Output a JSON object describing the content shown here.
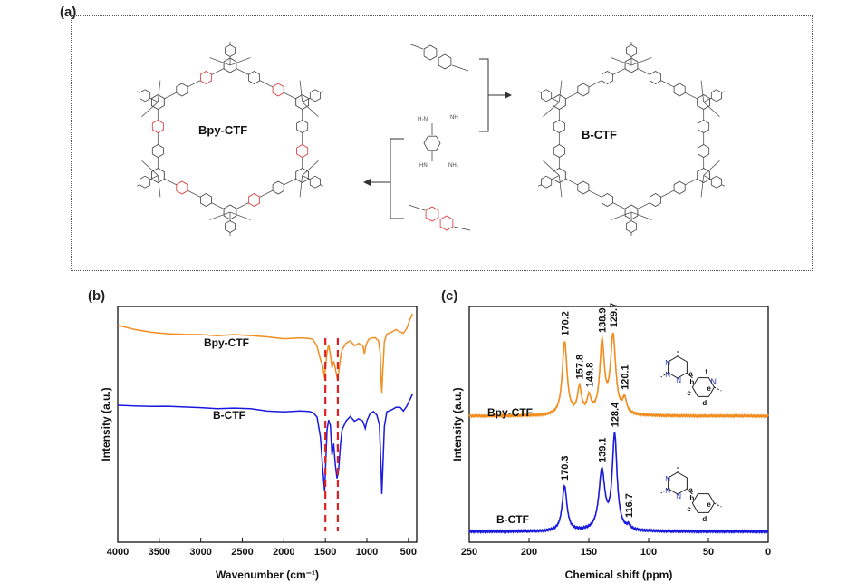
{
  "panels": {
    "a": "(a)",
    "b": "(b)",
    "c": "(c)"
  },
  "scheme": {
    "left_label": "Bpy-CTF",
    "right_label": "B-CTF",
    "nh_labels": [
      "NH",
      "H₂N",
      "HN",
      "NH₂"
    ]
  },
  "colors": {
    "bpy": "#f28c1e",
    "b": "#1a1adf",
    "dash": "#e02020",
    "atom_n": "#2233aa",
    "bond_n": "#d33333"
  },
  "chart_data": [
    {
      "id": "b",
      "type": "line",
      "xlabel": "Wavenumber (cm⁻¹)",
      "ylabel": "Intensity (a.u.)",
      "xlim": [
        4000,
        400
      ],
      "x_ticks": [
        4000,
        3500,
        3000,
        2500,
        2000,
        1500,
        1000,
        500
      ],
      "dashed_lines": [
        1500,
        1350
      ],
      "series": [
        {
          "name": "Bpy-CTF",
          "color": "#f28c1e",
          "points": [
            [
              4000,
              0.92
            ],
            [
              3800,
              0.905
            ],
            [
              3600,
              0.89
            ],
            [
              3400,
              0.88
            ],
            [
              3200,
              0.88
            ],
            [
              3000,
              0.885
            ],
            [
              2800,
              0.88
            ],
            [
              2600,
              0.88
            ],
            [
              2400,
              0.875
            ],
            [
              2200,
              0.875
            ],
            [
              2000,
              0.87
            ],
            [
              1800,
              0.87
            ],
            [
              1700,
              0.865
            ],
            [
              1650,
              0.86
            ],
            [
              1600,
              0.83
            ],
            [
              1560,
              0.78
            ],
            [
              1530,
              0.74
            ],
            [
              1510,
              0.7
            ],
            [
              1500,
              0.74
            ],
            [
              1480,
              0.8
            ],
            [
              1460,
              0.84
            ],
            [
              1440,
              0.8
            ],
            [
              1420,
              0.74
            ],
            [
              1400,
              0.77
            ],
            [
              1380,
              0.73
            ],
            [
              1360,
              0.7
            ],
            [
              1340,
              0.72
            ],
            [
              1320,
              0.78
            ],
            [
              1300,
              0.82
            ],
            [
              1250,
              0.85
            ],
            [
              1200,
              0.86
            ],
            [
              1150,
              0.84
            ],
            [
              1100,
              0.85
            ],
            [
              1050,
              0.84
            ],
            [
              1030,
              0.8
            ],
            [
              1010,
              0.84
            ],
            [
              980,
              0.86
            ],
            [
              950,
              0.87
            ],
            [
              900,
              0.87
            ],
            [
              860,
              0.86
            ],
            [
              840,
              0.8
            ],
            [
              830,
              0.7
            ],
            [
              820,
              0.63
            ],
            [
              810,
              0.72
            ],
            [
              790,
              0.85
            ],
            [
              760,
              0.89
            ],
            [
              700,
              0.89
            ],
            [
              650,
              0.9
            ],
            [
              600,
              0.89
            ],
            [
              560,
              0.89
            ],
            [
              520,
              0.91
            ],
            [
              480,
              0.94
            ],
            [
              450,
              0.97
            ]
          ]
        },
        {
          "name": "B-CTF",
          "color": "#1a1adf",
          "points": [
            [
              4000,
              0.58
            ],
            [
              3800,
              0.58
            ],
            [
              3600,
              0.575
            ],
            [
              3400,
              0.572
            ],
            [
              3200,
              0.572
            ],
            [
              3000,
              0.575
            ],
            [
              2800,
              0.57
            ],
            [
              2600,
              0.568
            ],
            [
              2400,
              0.565
            ],
            [
              2200,
              0.56
            ],
            [
              2000,
              0.56
            ],
            [
              1800,
              0.56
            ],
            [
              1700,
              0.555
            ],
            [
              1650,
              0.55
            ],
            [
              1600,
              0.53
            ],
            [
              1560,
              0.45
            ],
            [
              1530,
              0.3
            ],
            [
              1510,
              0.22
            ],
            [
              1500,
              0.3
            ],
            [
              1480,
              0.47
            ],
            [
              1460,
              0.52
            ],
            [
              1440,
              0.5
            ],
            [
              1420,
              0.37
            ],
            [
              1400,
              0.42
            ],
            [
              1380,
              0.32
            ],
            [
              1360,
              0.27
            ],
            [
              1340,
              0.31
            ],
            [
              1320,
              0.41
            ],
            [
              1300,
              0.48
            ],
            [
              1250,
              0.52
            ],
            [
              1200,
              0.54
            ],
            [
              1150,
              0.52
            ],
            [
              1100,
              0.53
            ],
            [
              1050,
              0.52
            ],
            [
              1020,
              0.48
            ],
            [
              1000,
              0.52
            ],
            [
              960,
              0.55
            ],
            [
              920,
              0.55
            ],
            [
              880,
              0.54
            ],
            [
              850,
              0.5
            ],
            [
              830,
              0.32
            ],
            [
              820,
              0.2
            ],
            [
              810,
              0.3
            ],
            [
              790,
              0.49
            ],
            [
              760,
              0.56
            ],
            [
              700,
              0.56
            ],
            [
              650,
              0.57
            ],
            [
              600,
              0.57
            ],
            [
              560,
              0.56
            ],
            [
              520,
              0.58
            ],
            [
              480,
              0.6
            ],
            [
              450,
              0.63
            ]
          ]
        }
      ]
    },
    {
      "id": "c",
      "type": "line",
      "xlabel": "Chemical shift (ppm)",
      "ylabel": "Intensity (a.u.)",
      "xlim": [
        250,
        0
      ],
      "x_ticks": [
        250,
        200,
        150,
        100,
        50,
        0
      ],
      "series": [
        {
          "name": "Bpy-CTF",
          "color": "#f28c1e",
          "baseline": 0.535,
          "peaks": [
            {
              "ppm": 170.2,
              "height": 0.31,
              "width": 2.4
            },
            {
              "ppm": 157.8,
              "height": 0.11,
              "width": 2.0
            },
            {
              "ppm": 149.8,
              "height": 0.07,
              "width": 2.0
            },
            {
              "ppm": 138.9,
              "height": 0.3,
              "width": 2.3
            },
            {
              "ppm": 129.7,
              "height": 0.33,
              "width": 2.6
            },
            {
              "ppm": 120.1,
              "height": 0.06,
              "width": 2.0
            }
          ],
          "labels": [
            "170.2",
            "157.8",
            "149.8",
            "138.9",
            "129.7",
            "120.1"
          ]
        },
        {
          "name": "B-CTF",
          "color": "#1a1adf",
          "baseline": 0.045,
          "peaks": [
            {
              "ppm": 170.3,
              "height": 0.19,
              "width": 2.4
            },
            {
              "ppm": 139.1,
              "height": 0.25,
              "width": 3.0
            },
            {
              "ppm": 128.4,
              "height": 0.4,
              "width": 2.4
            },
            {
              "ppm": 116.7,
              "height": 0.015,
              "width": 1.8
            }
          ],
          "labels": [
            "170.3",
            "139.1",
            "128.4",
            "116.7"
          ]
        }
      ],
      "insets": {
        "top": {
          "letters": [
            "a",
            "b",
            "c",
            "d",
            "e",
            "f"
          ],
          "ring_n": "N"
        },
        "bottom": {
          "letters": [
            "a",
            "b",
            "c",
            "d",
            "e"
          ]
        }
      }
    }
  ]
}
